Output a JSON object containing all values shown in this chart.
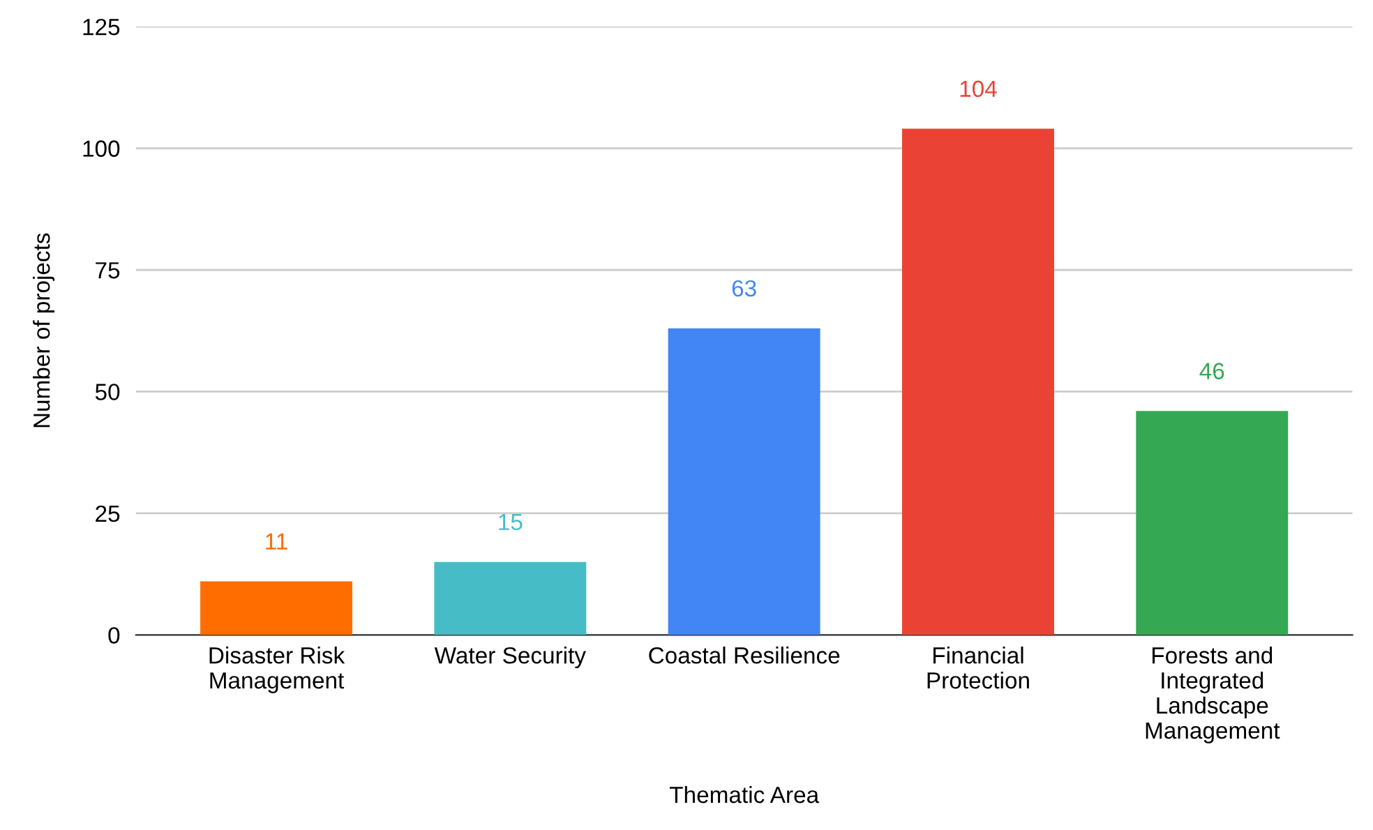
{
  "chart_data": {
    "type": "bar",
    "xlabel": "Thematic Area",
    "ylabel": "Number of projects",
    "categories": [
      "Disaster Risk\nManagement",
      "Water Security",
      "Coastal Resilience",
      "Financial\nProtection",
      "Forests and\nIntegrated\nLandscape\nManagement"
    ],
    "values": [
      11,
      15,
      63,
      104,
      46
    ],
    "colors": [
      "#ff6d01",
      "#46bdc6",
      "#4285f4",
      "#ea4335",
      "#34a853"
    ],
    "ylim": [
      0,
      125
    ],
    "yticks": [
      0,
      25,
      50,
      75,
      100,
      125
    ],
    "grid": "y",
    "data_labels": true
  }
}
